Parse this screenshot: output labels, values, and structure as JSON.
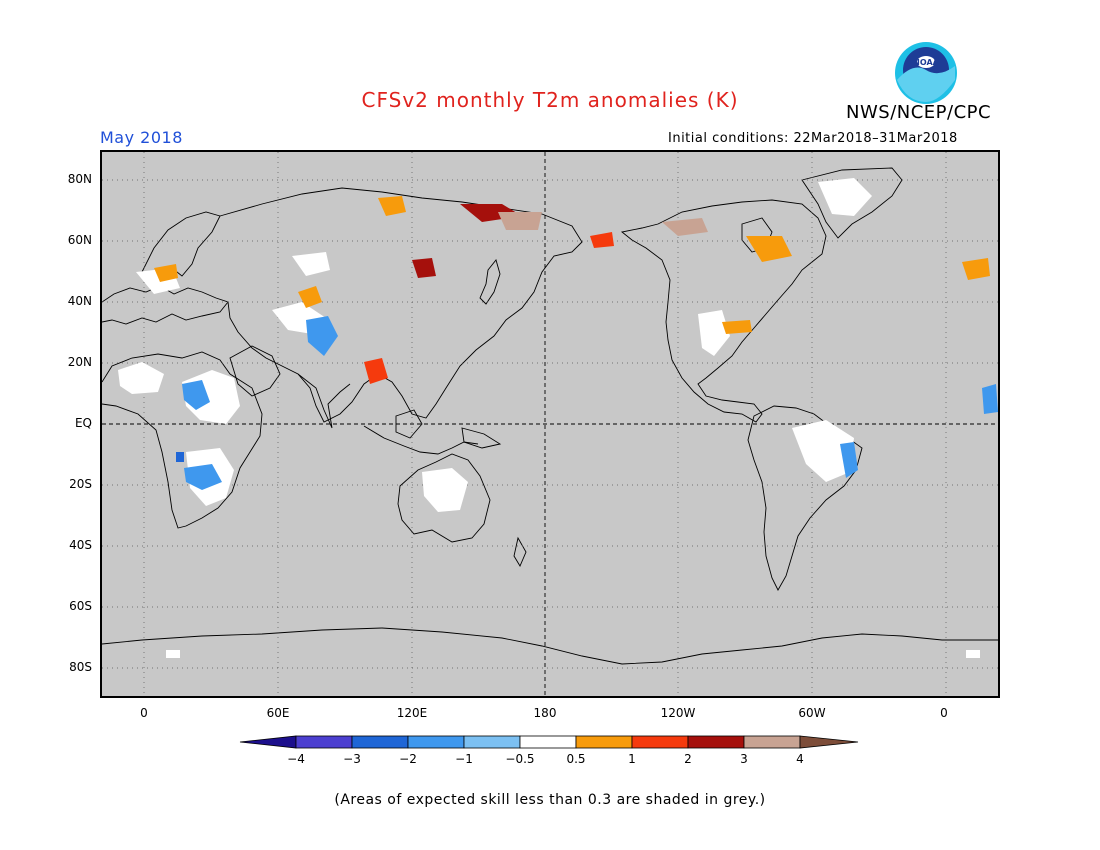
{
  "title": "CFSv2 monthly T2m anomalies (K)",
  "agency": "NWS/NCEP/CPC",
  "logo_text": "NOAA",
  "month_label": "May 2018",
  "initial_conditions": "Initial conditions: 22Mar2018–31Mar2018",
  "footer": "(Areas of expected skill less than 0.3 are shaded in grey.)",
  "lat_labels": [
    "80N",
    "60N",
    "40N",
    "20N",
    "EQ",
    "20S",
    "40S",
    "60S",
    "80S"
  ],
  "lon_labels": [
    "0",
    "60E",
    "120E",
    "180",
    "120W",
    "60W",
    "0"
  ],
  "colorbar": {
    "levels": [
      "−4",
      "−3",
      "−2",
      "−1",
      "−0.5",
      "0.5",
      "1",
      "2",
      "3",
      "4"
    ],
    "colors": [
      "#1c0f8c",
      "#4c3fd0",
      "#1f66d6",
      "#3f98ee",
      "#7cc0f2",
      "#ffffff",
      "#f79b0c",
      "#f53a0d",
      "#a5100c",
      "#c8a393",
      "#7d4d39"
    ]
  },
  "colors": {
    "title": "#e0231e",
    "month": "#2050d8",
    "mask_grey": "#c8c8c8"
  }
}
